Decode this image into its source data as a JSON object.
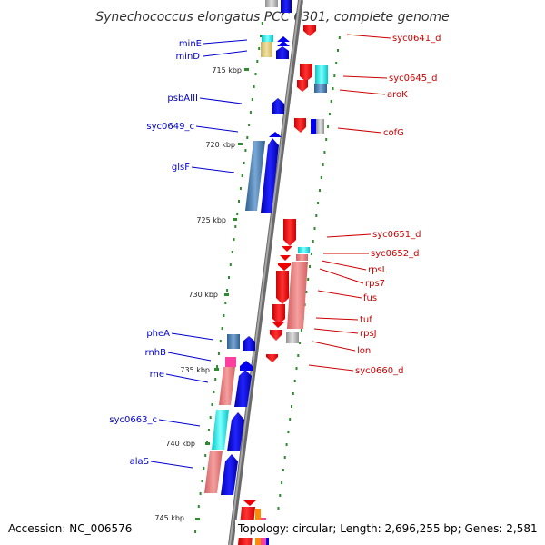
{
  "title": "Synechococcus elongatus PCC 6301, complete genome",
  "footer": {
    "accession": "Accession: NC_006576",
    "summary": "Topology: circular; Length: 2,696,255 bp; Genes: 2,581"
  },
  "colors": {
    "minus_label": "#0000cc",
    "plus_label": "#cc0000",
    "backbone": "#7a7a7a",
    "tick": "#2e8b2e"
  },
  "kbp_ticks": [
    "715 kbp",
    "720 kbp",
    "725 kbp",
    "730 kbp",
    "735 kbp",
    "740 kbp",
    "745 kbp"
  ],
  "minus_genes": [
    "minE",
    "minD",
    "psbAIII",
    "syc0649_c",
    "glsF",
    "pheA",
    "rnhB",
    "rne",
    "syc0663_c",
    "alaS"
  ],
  "plus_genes": [
    "syc0641_d",
    "syc0645_d",
    "aroK",
    "cofG",
    "syc0651_d",
    "syc0652_d",
    "rpsL",
    "rps7",
    "fus",
    "tuf",
    "rpsJ",
    "lon",
    "syc0660_d"
  ]
}
